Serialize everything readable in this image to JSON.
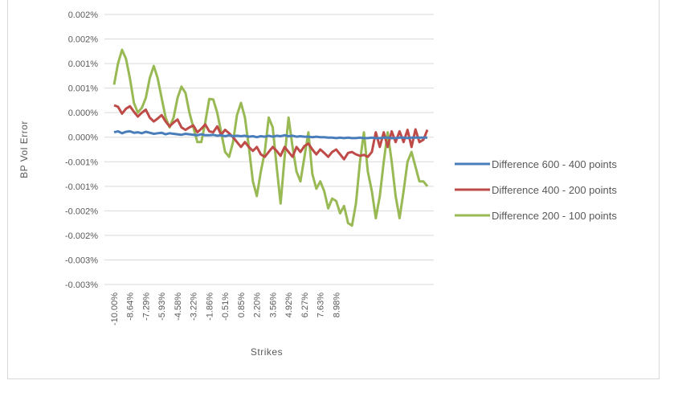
{
  "chart_data": {
    "type": "line",
    "title": "",
    "xlabel": "Strikes",
    "ylabel": "BP Vol Error",
    "grid": "horizontal",
    "legend_position": "right",
    "ylim": [
      -0.003,
      0.002
    ],
    "y_ticks": [
      0.0025,
      0.002,
      0.0015,
      0.001,
      0.0005,
      0,
      -0.0005,
      -0.001,
      -0.0015,
      -0.002,
      -0.0025,
      -0.003
    ],
    "y_tick_labels": [
      "0.002%",
      "0.002%",
      "0.001%",
      "0.001%",
      "0.000%",
      "0.000%",
      "-0.001%",
      "-0.001%",
      "-0.002%",
      "-0.002%",
      "-0.003%",
      "-0.003%"
    ],
    "x_tick_labels": [
      "-10.00%",
      "-8.64%",
      "-7.29%",
      "-5.93%",
      "-4.58%",
      "-3.22%",
      "-1.86%",
      "-0.51%",
      "0.85%",
      "2.20%",
      "3.56%",
      "4.92%",
      "6.27%",
      "7.63%",
      "8.98%"
    ],
    "x_tick_index_step": 4,
    "series": [
      {
        "name": "Difference 600 - 400 points",
        "color": "#4a7ebb",
        "values": [
          0.0001,
          0.00012,
          8e-05,
          0.00011,
          0.00012,
          9e-05,
          0.0001,
          8e-05,
          0.00011,
          9e-05,
          7e-05,
          8e-05,
          9e-05,
          6e-05,
          8e-05,
          7e-05,
          6e-05,
          5e-05,
          7e-05,
          6e-05,
          5e-05,
          4e-05,
          6e-05,
          4e-05,
          4e-05,
          5e-05,
          3e-05,
          4e-05,
          2e-05,
          4e-05,
          2e-05,
          3e-05,
          2e-05,
          3e-05,
          1e-05,
          2e-05,
          0.0,
          2e-05,
          1e-05,
          3e-05,
          1e-05,
          3e-05,
          2e-05,
          4e-05,
          2e-05,
          3e-05,
          1e-05,
          2e-05,
          1e-05,
          1e-05,
          0.0,
          1e-05,
          0.0,
          0.0,
          -1e-05,
          -1e-05,
          -2e-05,
          -1e-05,
          -2e-05,
          -1e-05,
          -2e-05,
          -2e-05,
          -1e-05,
          -2e-05,
          -2e-05,
          -1e-05,
          -2e-05,
          -2e-05,
          -1e-05,
          -1e-05,
          -2e-05,
          -2e-05,
          -1e-05,
          -1e-05,
          -2e-05,
          -1e-05,
          -1e-05,
          -1e-05,
          -1e-05,
          -1e-05
        ]
      },
      {
        "name": "Difference 400 - 200 points",
        "color": "#be4b48",
        "values": [
          0.00065,
          0.00062,
          0.00048,
          0.00058,
          0.00063,
          0.00052,
          0.00042,
          0.0005,
          0.00056,
          0.0004,
          0.00032,
          0.00038,
          0.00045,
          0.00032,
          0.00022,
          0.0003,
          0.00036,
          0.0002,
          0.00015,
          0.0002,
          0.00024,
          0.0001,
          0.00017,
          0.00026,
          0.00012,
          0.0001,
          0.00022,
          5e-05,
          0.00015,
          8e-05,
          0.0,
          -0.0001,
          -0.0002,
          -0.0001,
          -0.0002,
          -0.00028,
          -0.0002,
          -0.00035,
          -0.0004,
          -0.0003,
          -0.0002,
          -0.00028,
          -0.00038,
          -0.0002,
          -0.0003,
          -0.0004,
          -0.0002,
          -0.0003,
          -0.00018,
          -0.00013,
          -0.00025,
          -0.00035,
          -0.00025,
          -0.00032,
          -0.0004,
          -0.0003,
          -0.00025,
          -0.00035,
          -0.00045,
          -0.00032,
          -0.0003,
          -0.00035,
          -0.00038,
          -0.00036,
          -0.0004,
          -0.0003,
          0.0001,
          -0.0002,
          0.0001,
          -0.0002,
          0.00012,
          -0.0001,
          0.00012,
          -0.0001,
          0.00015,
          -0.0002,
          0.00016,
          -0.0001,
          -5e-05,
          0.00015
        ]
      },
      {
        "name": "Difference 200 - 100 points",
        "color": "#98b954",
        "values": [
          0.00107,
          0.0015,
          0.00178,
          0.0016,
          0.0012,
          0.0007,
          0.0005,
          0.0006,
          0.0008,
          0.0012,
          0.00145,
          0.0012,
          0.0008,
          0.0004,
          0.0002,
          0.0004,
          0.0008,
          0.00103,
          0.0009,
          0.0005,
          0.0002,
          -0.0001,
          -0.0001,
          0.0003,
          0.00078,
          0.00077,
          0.0005,
          0.0001,
          -0.0003,
          -0.0004,
          -0.0001,
          0.00045,
          0.0007,
          0.0004,
          -0.0002,
          -0.0009,
          -0.0012,
          -0.0007,
          -0.0003,
          0.0004,
          0.0002,
          -0.0006,
          -0.00135,
          -0.0004,
          0.0004,
          -0.0002,
          -0.0007,
          -0.0009,
          -0.0004,
          0.0001,
          -0.00075,
          -0.00105,
          -0.0009,
          -0.0011,
          -0.00145,
          -0.00125,
          -0.0013,
          -0.00155,
          -0.0014,
          -0.00175,
          -0.0018,
          -0.00135,
          -0.0005,
          0.0001,
          -0.0007,
          -0.0011,
          -0.00165,
          -0.0012,
          -0.0005,
          0.0001,
          -0.0005,
          -0.0012,
          -0.00165,
          -0.0011,
          -0.0005,
          -0.0003,
          -0.0006,
          -0.0009,
          -0.0009,
          -0.001
        ]
      }
    ]
  }
}
